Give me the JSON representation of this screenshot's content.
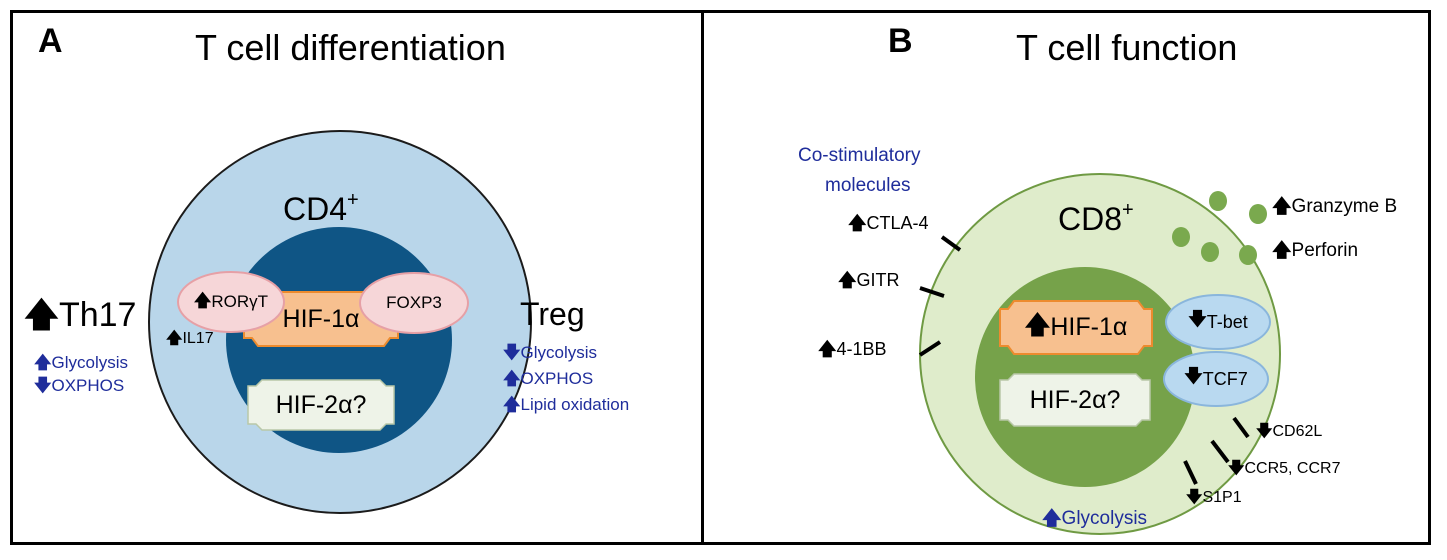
{
  "panel_a": {
    "label": "A",
    "title": "T cell differentiation",
    "cell_label": "CD4",
    "cell_sup": "+",
    "hif1": "HIF-1α",
    "hif2": "HIF-2α?",
    "ror_arrow": "🡅",
    "ror": "RORγT",
    "foxp3": "FOXP3",
    "il17_arrow": "🡅",
    "il17": "IL17",
    "th17_arrow": "🡅",
    "th17": "Th17",
    "th17_metab": [
      {
        "arrow": "🡅",
        "text": "Glycolysis"
      },
      {
        "arrow": "🡇",
        "text": "OXPHOS"
      }
    ],
    "treg": "Treg",
    "treg_metab": [
      {
        "arrow": "🡇",
        "text": "Glycolysis"
      },
      {
        "arrow": "🡅",
        "text": "OXPHOS"
      },
      {
        "arrow": "🡅",
        "text": "Lipid oxidation"
      }
    ]
  },
  "panel_b": {
    "label": "B",
    "title": "T cell function",
    "cell_label": "CD8",
    "cell_sup": "+",
    "hif1_arrow": "🡅",
    "hif1": "HIF-1α",
    "hif2": "HIF-2α?",
    "costim_title_1": "Co-stimulatory",
    "costim_title_2": "molecules",
    "costim": [
      {
        "arrow": "🡅",
        "text": "CTLA-4"
      },
      {
        "arrow": "🡅",
        "text": "GITR"
      },
      {
        "arrow": "🡅",
        "text": "4-1BB"
      }
    ],
    "tbet_arrow": "🡇",
    "tbet": "T-bet",
    "tcf7_arrow": "🡇",
    "tcf7": "TCF7",
    "effectors": [
      {
        "arrow": "🡅",
        "text": "Granzyme B"
      },
      {
        "arrow": "🡅",
        "text": "Perforin"
      }
    ],
    "receptors": [
      {
        "arrow": "🡇",
        "text": "CD62L"
      },
      {
        "arrow": "🡇",
        "text": "CCR5, CCR7"
      },
      {
        "arrow": "🡇",
        "text": "S1P1"
      }
    ],
    "glyco_arrow": "🡅",
    "glyco": "Glycolysis"
  },
  "colors": {
    "cd4_outer": "#b9d6ea",
    "cd4_inner": "#0f5585",
    "cd8_outer": "#dfeccb",
    "cd8_inner": "#76a24a",
    "hif1_fill": "#f7c08f",
    "hif1_border": "#ed8b2e",
    "hif2_fill": "#eef3e8",
    "pink_fill": "#f6d6d8",
    "pink_border": "#e6a0a6",
    "tf_fill": "#b9d9f0",
    "tf_border": "#8ab6dc",
    "granule": "#7aa94e",
    "blue_text": "#1f2d9b"
  }
}
